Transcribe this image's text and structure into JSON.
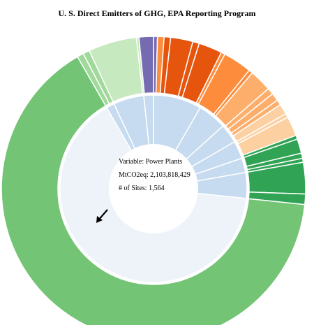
{
  "title": "U. S. Direct Emitters of GHG, EPA Reporting Program",
  "info": {
    "variable_label": "Variable",
    "variable_value": "Power Plants",
    "emissions_label": "MtCO2eq",
    "emissions_value": "2,103,818,429",
    "sites_label": "# of Sites",
    "sites_value": "1,564"
  },
  "colors": {
    "inner_light_blue": "#c6dbef",
    "inner_selected": "#eef3fa",
    "outer_green": "#74c476",
    "outer_light_green": "#c7e9c0",
    "outer_mid_green": "#a1d99b",
    "outer_dark_green": "#31a354",
    "outer_purple": "#756bb1",
    "outer_orange_dark": "#e6550d",
    "outer_orange": "#fd8d3c",
    "outer_orange_light": "#fdae6b",
    "outer_peach": "#fdd0a2"
  },
  "chart_data": {
    "type": "sunburst",
    "title": "U. S. Direct Emitters of GHG, EPA Reporting Program",
    "selected": {
      "variable": "Power Plants",
      "mtco2eq": 2103818429,
      "sites": 1564
    },
    "inner_ring": [
      {
        "angle_deg": [
          0,
          30
        ],
        "color": "#c6dbef"
      },
      {
        "angle_deg": [
          30,
          48
        ],
        "color": "#c6dbef"
      },
      {
        "angle_deg": [
          48,
          60
        ],
        "color": "#c6dbef"
      },
      {
        "angle_deg": [
          60,
          71
        ],
        "color": "#c6dbef"
      },
      {
        "angle_deg": [
          71,
          80
        ],
        "color": "#c6dbef"
      },
      {
        "angle_deg": [
          80,
          96
        ],
        "color": "#c6dbef"
      },
      {
        "angle_deg": [
          96,
          330
        ],
        "color": "#eef3fa",
        "selected": true
      },
      {
        "angle_deg": [
          330,
          335
        ],
        "color": "#c6dbef"
      },
      {
        "angle_deg": [
          335,
          354
        ],
        "color": "#c6dbef"
      },
      {
        "angle_deg": [
          354,
          360
        ],
        "color": "#c6dbef"
      }
    ],
    "outer_ring": [
      {
        "angle_deg": [
          0,
          1.5
        ],
        "color": "#756bb1"
      },
      {
        "angle_deg": [
          1.5,
          4
        ],
        "color": "#fd8d3c"
      },
      {
        "angle_deg": [
          4,
          6.5
        ],
        "color": "#e6550d"
      },
      {
        "angle_deg": [
          6.5,
          15
        ],
        "color": "#e6550d"
      },
      {
        "angle_deg": [
          15,
          17.5
        ],
        "color": "#e6550d"
      },
      {
        "angle_deg": [
          17.5,
          26.5
        ],
        "color": "#e6550d"
      },
      {
        "angle_deg": [
          26.5,
          28
        ],
        "color": "#fd8d3c"
      },
      {
        "angle_deg": [
          28,
          39
        ],
        "color": "#fd8d3c"
      },
      {
        "angle_deg": [
          39,
          40.5
        ],
        "color": "#fd8d3c"
      },
      {
        "angle_deg": [
          40.5,
          49
        ],
        "color": "#fdae6b"
      },
      {
        "angle_deg": [
          49,
          51.5
        ],
        "color": "#fdae6b"
      },
      {
        "angle_deg": [
          51.5,
          54.5
        ],
        "color": "#fdae6b"
      },
      {
        "angle_deg": [
          54.5,
          56.5
        ],
        "color": "#fdae6b"
      },
      {
        "angle_deg": [
          56.5,
          60.5
        ],
        "color": "#fdd0a2"
      },
      {
        "angle_deg": [
          60.5,
          62
        ],
        "color": "#fdd0a2"
      },
      {
        "angle_deg": [
          62,
          69.5
        ],
        "color": "#fdd0a2"
      },
      {
        "angle_deg": [
          69.5,
          71
        ],
        "color": "#31a354"
      },
      {
        "angle_deg": [
          71,
          76.5
        ],
        "color": "#31a354"
      },
      {
        "angle_deg": [
          76.5,
          78.5
        ],
        "color": "#31a354"
      },
      {
        "angle_deg": [
          78.5,
          80
        ],
        "color": "#31a354"
      },
      {
        "angle_deg": [
          80,
          92
        ],
        "color": "#31a354"
      },
      {
        "angle_deg": [
          92,
          96
        ],
        "color": "#31a354"
      },
      {
        "angle_deg": [
          96,
          330
        ],
        "color": "#74c476"
      },
      {
        "angle_deg": [
          330,
          332.5
        ],
        "color": "#a1d99b"
      },
      {
        "angle_deg": [
          332.5,
          335
        ],
        "color": "#a1d99b"
      },
      {
        "angle_deg": [
          335,
          353.5
        ],
        "color": "#c7e9c0"
      },
      {
        "angle_deg": [
          353.5,
          354.5
        ],
        "color": "#c7e9c0"
      },
      {
        "angle_deg": [
          354.5,
          360
        ],
        "color": "#756bb1"
      }
    ]
  }
}
